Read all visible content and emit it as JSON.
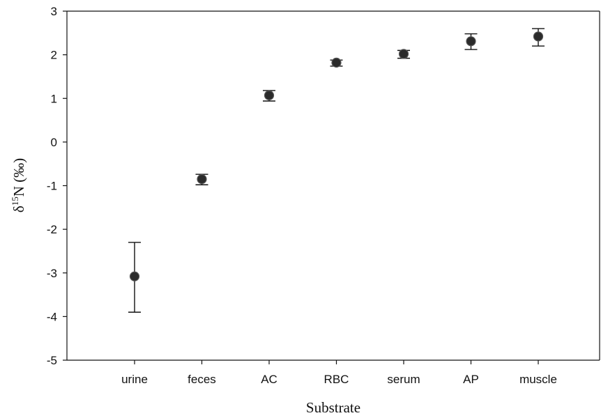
{
  "chart_data": {
    "type": "scatter",
    "title": "",
    "xlabel": "Substrate",
    "ylabel": {
      "base": "δ",
      "superscript": "15",
      "rest": "N (‰)"
    },
    "categories": [
      "urine",
      "feces",
      "AC",
      "RBC",
      "serum",
      "AP",
      "muscle"
    ],
    "series": [
      {
        "values": [
          -3.08,
          -0.85,
          1.07,
          1.82,
          2.02,
          2.31,
          2.42
        ],
        "error_upper": [
          -2.3,
          -0.74,
          1.18,
          1.88,
          2.1,
          2.48,
          2.6
        ],
        "error_lower": [
          -3.9,
          -0.98,
          0.94,
          1.74,
          1.92,
          2.12,
          2.2
        ]
      }
    ],
    "ylim": [
      -5,
      3
    ],
    "yticks": [
      "3",
      "2",
      "1",
      "0",
      "-1",
      "-2",
      "-3",
      "-4",
      "-5"
    ],
    "grid": false,
    "colors": {
      "marker": "#2b2b2b",
      "axis": "#111111"
    }
  }
}
